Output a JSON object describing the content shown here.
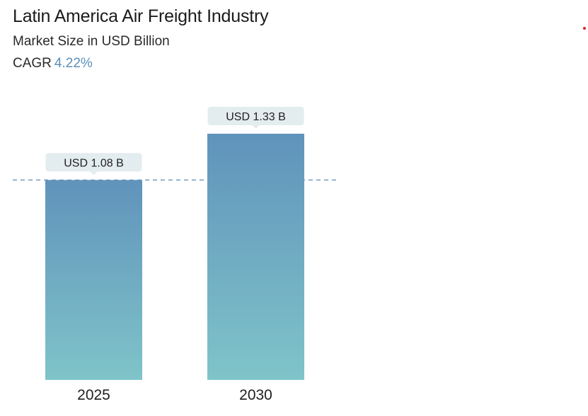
{
  "header": {
    "title": "Latin America Air Freight Industry",
    "subtitle": "Market Size in USD Billion",
    "cagr_label": "CAGR",
    "cagr_value": "4.22%"
  },
  "colors": {
    "bar_top": "#6093bb",
    "bar_bottom": "#7fc4c9",
    "callout_bg": "#e3ecef",
    "reference_line": "#6b92b8",
    "cagr_value": "#5b8fba",
    "corner_dot": "#e0242a"
  },
  "chart_data": {
    "type": "bar",
    "categories": [
      "2025",
      "2030"
    ],
    "values": [
      1.08,
      1.33
    ],
    "data_labels": [
      "USD 1.08 B",
      "USD 1.33 B"
    ],
    "title": "Latin America Air Freight Industry",
    "subtitle": "Market Size in USD Billion",
    "xlabel": "",
    "ylabel": "",
    "ylim": [
      0,
      1.33
    ],
    "grid": false,
    "y_axis_visible": false,
    "reference_line": {
      "value": 1.08,
      "style": "dashed"
    }
  }
}
